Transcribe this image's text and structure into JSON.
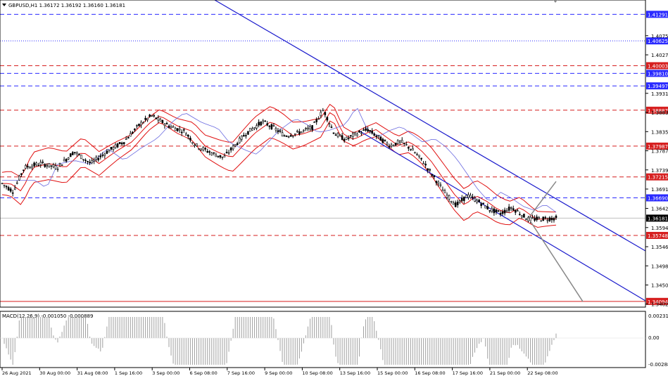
{
  "header": {
    "symbol_line": "GBPUSD,H1  1.36172 1.36192 1.36160 1.36181"
  },
  "macd": {
    "label": "MACD(12,26,9) -0.001050 -0.000889",
    "scale": [
      "0.00231",
      "0.00",
      "-0.002889"
    ]
  },
  "chart_data": {
    "type": "candlestick",
    "symbol": "GBPUSD",
    "timeframe": "H1",
    "last_bar": {
      "open": 1.36172,
      "high": 1.36192,
      "low": 1.3616,
      "close": 1.36181
    },
    "price_axis_ticks": [
      "1.40755",
      "1.40275",
      "1.39310",
      "1.38830",
      "1.38350",
      "1.37870",
      "1.37390",
      "1.36910",
      "1.36425",
      "1.35945",
      "1.35465",
      "1.34985",
      "1.34505",
      "1.34025"
    ],
    "time_axis_ticks": [
      "26 Aug 2021",
      "30 Aug 00:00",
      "31 Aug 08:00",
      "1 Sep 16:00",
      "3 Sep 00:00",
      "6 Sep 08:00",
      "7 Sep 16:00",
      "9 Sep 00:00",
      "10 Sep 08:00",
      "13 Sep 16:00",
      "15 Sep 00:00",
      "16 Sep 08:00",
      "17 Sep 16:00",
      "21 Sep 00:00",
      "22 Sep 08:00"
    ],
    "levels": [
      {
        "price": 1.41291,
        "label": "1.41291",
        "color": "#2a2aff",
        "style": "dashed"
      },
      {
        "price": 1.40625,
        "label": "1.40625",
        "color": "#2a2aff",
        "style": "dotted"
      },
      {
        "price": 1.40003,
        "label": "1.40003",
        "color": "#d61f1f",
        "style": "dashed"
      },
      {
        "price": 1.3981,
        "label": "1.39810",
        "color": "#2a2aff",
        "style": "dashed"
      },
      {
        "price": 1.39497,
        "label": "1.39497",
        "color": "#2a2aff",
        "style": "dashed"
      },
      {
        "price": 1.38887,
        "label": "1.38887",
        "color": "#d61f1f",
        "style": "dashed"
      },
      {
        "price": 1.37987,
        "label": "1.37987",
        "color": "#d61f1f",
        "style": "dashed"
      },
      {
        "price": 1.37215,
        "label": "1.37215",
        "color": "#d61f1f",
        "style": "dashed"
      },
      {
        "price": 1.3669,
        "label": "1.36690",
        "color": "#2a2aff",
        "style": "dashed"
      },
      {
        "price": 1.36181,
        "label": "1.36181",
        "color": "#000000",
        "style": "current"
      },
      {
        "price": 1.35748,
        "label": "1.35748",
        "color": "#d61f1f",
        "style": "dashed"
      },
      {
        "price": 1.34094,
        "label": "1.34094",
        "color": "#d61f1f",
        "style": "solid"
      }
    ],
    "price_path": [
      [
        0,
        1.3705
      ],
      [
        0.02,
        1.3685
      ],
      [
        0.04,
        1.3745
      ],
      [
        0.07,
        1.3755
      ],
      [
        0.1,
        1.3745
      ],
      [
        0.13,
        1.3785
      ],
      [
        0.16,
        1.3755
      ],
      [
        0.19,
        1.3785
      ],
      [
        0.22,
        1.381
      ],
      [
        0.25,
        1.3855
      ],
      [
        0.27,
        1.3875
      ],
      [
        0.3,
        1.385
      ],
      [
        0.33,
        1.3835
      ],
      [
        0.35,
        1.38
      ],
      [
        0.38,
        1.378
      ],
      [
        0.4,
        1.377
      ],
      [
        0.42,
        1.38
      ],
      [
        0.44,
        1.383
      ],
      [
        0.47,
        1.386
      ],
      [
        0.49,
        1.3845
      ],
      [
        0.51,
        1.3825
      ],
      [
        0.53,
        1.383
      ],
      [
        0.56,
        1.3845
      ],
      [
        0.58,
        1.389
      ],
      [
        0.6,
        1.383
      ],
      [
        0.62,
        1.3815
      ],
      [
        0.64,
        1.383
      ],
      [
        0.66,
        1.384
      ],
      [
        0.68,
        1.382
      ],
      [
        0.7,
        1.38
      ],
      [
        0.72,
        1.381
      ],
      [
        0.74,
        1.379
      ],
      [
        0.76,
        1.376
      ],
      [
        0.78,
        1.372
      ],
      [
        0.8,
        1.368
      ],
      [
        0.82,
        1.365
      ],
      [
        0.84,
        1.3675
      ],
      [
        0.86,
        1.366
      ],
      [
        0.88,
        1.364
      ],
      [
        0.9,
        1.363
      ],
      [
        0.92,
        1.3645
      ],
      [
        0.95,
        1.3615
      ],
      [
        1.0,
        1.3618
      ]
    ],
    "annotations": {
      "projection_up": {
        "from": [
          0.95,
          1.3618
        ],
        "to": [
          1.0,
          1.371
        ]
      },
      "projection_down": {
        "from": [
          0.95,
          1.3618
        ],
        "to": [
          1.07,
          1.3409
        ]
      }
    },
    "macd": {
      "label": "MACD(12,26,9)",
      "main": -0.00105,
      "signal": -0.000889,
      "ylim": [
        -0.002889,
        0.00231
      ]
    }
  },
  "colors": {
    "bands": "#e01010",
    "channel": "#1a1acc",
    "ma": "#6a6ae0",
    "candle": "#000000",
    "macd_hist": "#a0a0a0",
    "macd_signal": "#d62020"
  }
}
